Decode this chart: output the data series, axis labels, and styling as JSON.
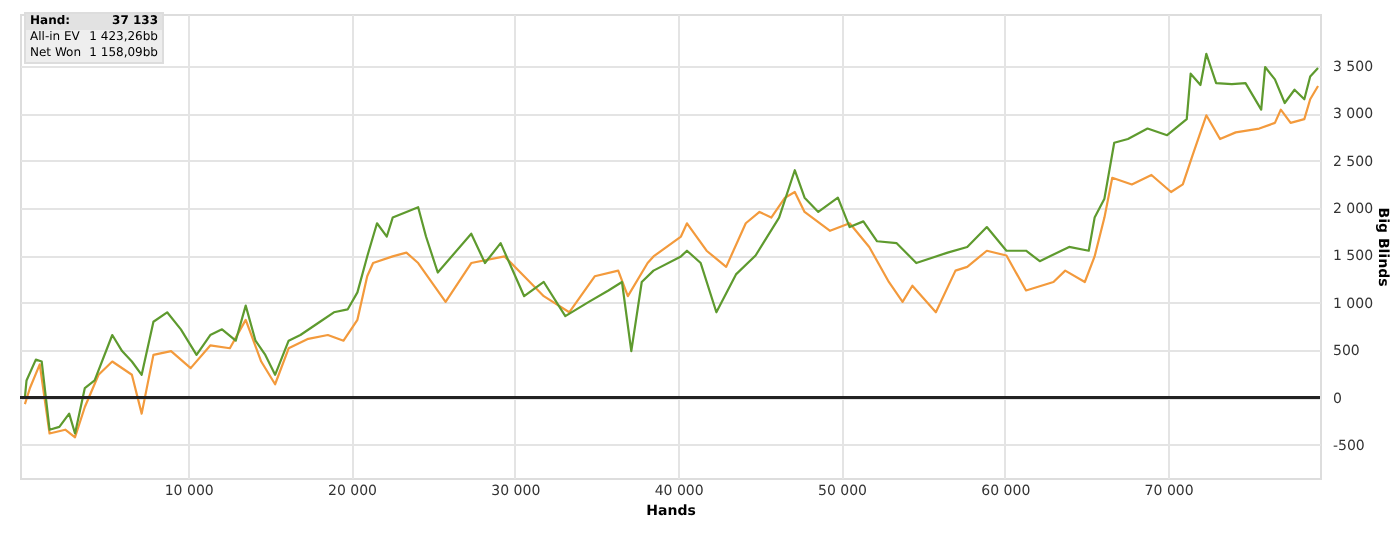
{
  "chart_data": {
    "type": "line",
    "xlabel": "Hands",
    "ylabel": "Big Blinds",
    "xlim": [
      -300,
      79300
    ],
    "ylim": [
      -850,
      4050
    ],
    "xticks": [
      {
        "value": 10000,
        "label": "10 000"
      },
      {
        "value": 20000,
        "label": "20 000"
      },
      {
        "value": 30000,
        "label": "30 000"
      },
      {
        "value": 40000,
        "label": "40 000"
      },
      {
        "value": 50000,
        "label": "50 000"
      },
      {
        "value": 60000,
        "label": "60 000"
      },
      {
        "value": 70000,
        "label": "70 000"
      }
    ],
    "yticks": [
      -500,
      0,
      500,
      {
        "value": 1000,
        "label": "1 000"
      },
      {
        "value": 1500,
        "label": "1 500"
      },
      {
        "value": 2000,
        "label": "2 000"
      },
      {
        "value": 2500,
        "label": "2 500"
      },
      {
        "value": 3000,
        "label": "3 000"
      },
      {
        "value": 3500,
        "label": "3 500"
      }
    ],
    "grid": true,
    "line_style": "solid",
    "ref_lines": [
      {
        "axis": "y",
        "value": 0,
        "color": "#222222"
      }
    ],
    "annotations": [
      "Hand:",
      "37 133",
      "All-in EV",
      "1 423,26bb",
      "Net Won",
      "1 158,09bb"
    ],
    "series": [
      {
        "color": "#f39a3c",
        "x": [
          0,
          310,
          910,
          1510,
          2470,
          3070,
          3670,
          4510,
          5350,
          6550,
          7150,
          7870,
          8950,
          10150,
          11350,
          12550,
          13520,
          14470,
          15320,
          16150,
          17350,
          18550,
          19510,
          20360,
          20960,
          21320,
          22520,
          23360,
          24080,
          25760,
          27330,
          29370,
          30570,
          31770,
          33330,
          34890,
          36330,
          36920,
          38130,
          38490,
          40170,
          40540,
          41740,
          42940,
          44140,
          44980,
          45700,
          46540,
          47140,
          47740,
          49300,
          50500,
          51700,
          52900,
          53740,
          54340,
          55780,
          56980,
          57700,
          58900,
          60100,
          61300,
          62980,
          63700,
          64900,
          65500,
          66100,
          66580,
          67780,
          68980,
          70180,
          70900,
          71500,
          72340,
          73180,
          74140,
          75580,
          76540,
          76900,
          77500,
          78340,
          78700,
          79180
        ],
        "values": [
          -70,
          100,
          350,
          -380,
          -340,
          -420,
          -100,
          240,
          380,
          240,
          -170,
          450,
          490,
          310,
          550,
          520,
          820,
          380,
          140,
          520,
          620,
          660,
          600,
          820,
          1280,
          1420,
          1490,
          1530,
          1420,
          1010,
          1420,
          1490,
          1280,
          1070,
          900,
          1280,
          1340,
          1070,
          1420,
          1490,
          1700,
          1840,
          1550,
          1380,
          1840,
          1960,
          1900,
          2110,
          2170,
          1960,
          1760,
          1840,
          1590,
          1220,
          1010,
          1180,
          900,
          1340,
          1380,
          1550,
          1500,
          1130,
          1220,
          1340,
          1220,
          1490,
          1900,
          2320,
          2250,
          2350,
          2170,
          2250,
          2560,
          2980,
          2730,
          2800,
          2840,
          2900,
          3040,
          2900,
          2940,
          3150,
          3290
        ]
      },
      {
        "color": "#5e9a2e",
        "x": [
          0,
          100,
          670,
          1030,
          1510,
          2110,
          2710,
          3070,
          3670,
          4270,
          5350,
          5950,
          6550,
          7150,
          7870,
          8710,
          9550,
          10510,
          11350,
          12070,
          12910,
          13520,
          14120,
          14720,
          15320,
          16150,
          16870,
          18070,
          18920,
          19760,
          20360,
          20960,
          21560,
          22160,
          22520,
          23360,
          24080,
          24560,
          25280,
          27330,
          28170,
          29130,
          30570,
          31770,
          33090,
          34530,
          35730,
          36560,
          37130,
          37770,
          38490,
          40170,
          40540,
          41380,
          42340,
          43540,
          44740,
          46180,
          47140,
          47740,
          48580,
          49780,
          50500,
          51340,
          52180,
          53380,
          54580,
          56500,
          57700,
          58900,
          60100,
          61300,
          62140,
          63940,
          65140,
          65500,
          66100,
          66700,
          67540,
          68740,
          69940,
          71140,
          71380,
          71980,
          72340,
          72940,
          73900,
          74740,
          75700,
          75940,
          76540,
          77140,
          77740,
          78340,
          78700,
          79180
        ],
        "values": [
          0,
          180,
          400,
          380,
          -340,
          -310,
          -170,
          -380,
          100,
          180,
          660,
          490,
          380,
          240,
          800,
          900,
          720,
          450,
          660,
          720,
          600,
          970,
          600,
          450,
          240,
          600,
          660,
          800,
          900,
          930,
          1110,
          1490,
          1840,
          1700,
          1900,
          1960,
          2010,
          1700,
          1320,
          1730,
          1420,
          1630,
          1070,
          1220,
          860,
          1010,
          1130,
          1220,
          490,
          1220,
          1340,
          1490,
          1550,
          1420,
          900,
          1300,
          1500,
          1900,
          2400,
          2110,
          1960,
          2110,
          1800,
          1860,
          1650,
          1630,
          1420,
          1530,
          1590,
          1800,
          1550,
          1550,
          1440,
          1590,
          1550,
          1900,
          2100,
          2690,
          2730,
          2840,
          2770,
          2940,
          3420,
          3300,
          3630,
          3320,
          3310,
          3320,
          3040,
          3490,
          3360,
          3110,
          3250,
          3150,
          3390,
          3480
        ]
      }
    ]
  }
}
